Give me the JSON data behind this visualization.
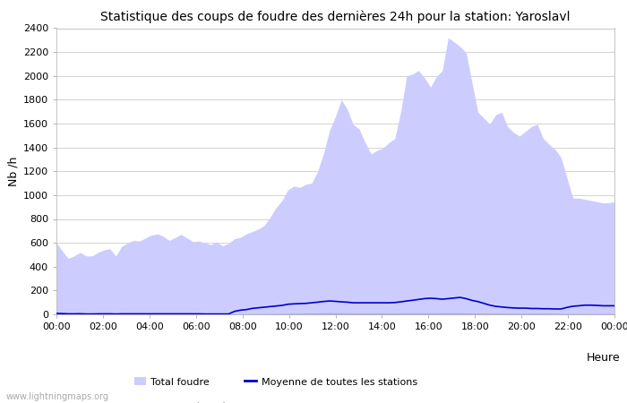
{
  "title": "Statistique des coups de foudre des dernières 24h pour la station: Yaroslavl",
  "ylabel": "Nb /h",
  "xlabel_legend": "Heure",
  "watermark": "www.lightningmaps.org",
  "ylim": [
    0,
    2400
  ],
  "yticks": [
    0,
    200,
    400,
    600,
    800,
    1000,
    1200,
    1400,
    1600,
    1800,
    2000,
    2200,
    2400
  ],
  "xtick_labels": [
    "00:00",
    "02:00",
    "04:00",
    "06:00",
    "08:00",
    "10:00",
    "12:00",
    "14:00",
    "16:00",
    "18:00",
    "20:00",
    "22:00",
    "00:00"
  ],
  "total_foudre_color": "#ccccff",
  "yaroslavl_color": "#aaaadd",
  "moyenne_color": "#0000cc",
  "background_color": "#ffffff",
  "grid_color": "#cccccc",
  "total_foudre": [
    600,
    530,
    470,
    490,
    520,
    490,
    490,
    520,
    540,
    550,
    490,
    570,
    600,
    620,
    615,
    640,
    665,
    675,
    655,
    620,
    645,
    670,
    640,
    610,
    615,
    600,
    585,
    605,
    575,
    595,
    635,
    645,
    675,
    695,
    715,
    745,
    815,
    895,
    955,
    1045,
    1075,
    1065,
    1090,
    1100,
    1200,
    1350,
    1540,
    1660,
    1800,
    1720,
    1590,
    1555,
    1440,
    1345,
    1375,
    1395,
    1440,
    1475,
    1700,
    2000,
    2015,
    2045,
    1985,
    1905,
    1995,
    2045,
    2320,
    2285,
    2245,
    2195,
    1945,
    1695,
    1645,
    1595,
    1675,
    1695,
    1575,
    1525,
    1495,
    1535,
    1575,
    1595,
    1475,
    1425,
    1385,
    1315,
    1145,
    975,
    975,
    965,
    955,
    945,
    935,
    935,
    945
  ],
  "yaroslavl_foudre": [
    10,
    8,
    5,
    5,
    6,
    4,
    4,
    5,
    5,
    5,
    4,
    5,
    5,
    5,
    5,
    5,
    5,
    5,
    5,
    5,
    5,
    5,
    5,
    5,
    5,
    4,
    4,
    4,
    4,
    4,
    5,
    5,
    5,
    6,
    6,
    6,
    7,
    7,
    8,
    9,
    9,
    9,
    10,
    11,
    12,
    13,
    13,
    12,
    12,
    12,
    11,
    11,
    11,
    11,
    11,
    11,
    11,
    11,
    12,
    12,
    12,
    12,
    12,
    12,
    12,
    12,
    13,
    13,
    13,
    12,
    11,
    10,
    10,
    10,
    10,
    10,
    9,
    9,
    9,
    9,
    9,
    9,
    9,
    9,
    8,
    8,
    7,
    7,
    7,
    7,
    7,
    7,
    7,
    7,
    7
  ],
  "moyenne": [
    8,
    6,
    4,
    4,
    5,
    3,
    3,
    4,
    4,
    4,
    3,
    4,
    4,
    4,
    4,
    4,
    4,
    4,
    4,
    4,
    4,
    4,
    4,
    4,
    4,
    3,
    3,
    3,
    3,
    3,
    25,
    35,
    40,
    50,
    55,
    60,
    65,
    70,
    75,
    85,
    88,
    90,
    92,
    97,
    102,
    108,
    112,
    109,
    105,
    102,
    97,
    97,
    97,
    97,
    97,
    97,
    97,
    99,
    105,
    112,
    118,
    125,
    132,
    135,
    132,
    127,
    132,
    137,
    142,
    132,
    117,
    107,
    92,
    77,
    67,
    62,
    57,
    54,
    52,
    52,
    49,
    49,
    47,
    47,
    45,
    45,
    58,
    68,
    72,
    77,
    77,
    75,
    72,
    72,
    72
  ]
}
